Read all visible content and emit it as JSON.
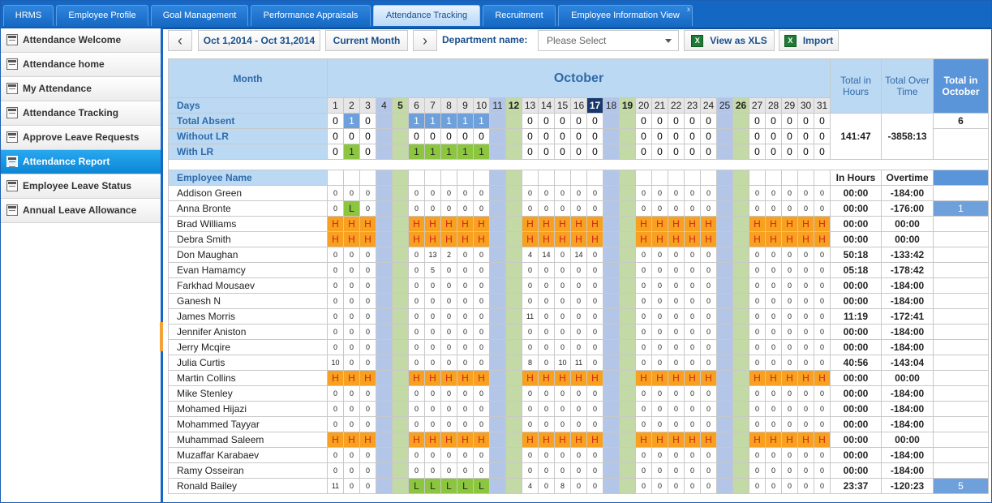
{
  "tabs": [
    {
      "label": "HRMS",
      "active": false
    },
    {
      "label": "Employee Profile",
      "active": false
    },
    {
      "label": "Goal Management",
      "active": false
    },
    {
      "label": "Performance Appraisals",
      "active": false
    },
    {
      "label": "Attendance Tracking",
      "active": true
    },
    {
      "label": "Recruitment",
      "active": false
    },
    {
      "label": "Employee Information View",
      "active": false
    }
  ],
  "tab_close_glyph": "x",
  "sidebar": {
    "items": [
      {
        "label": "Attendance Welcome",
        "active": false
      },
      {
        "label": "Attendance home",
        "active": false
      },
      {
        "label": "My Attendance",
        "active": false
      },
      {
        "label": "Attendance Tracking",
        "active": false
      },
      {
        "label": "Approve Leave Requests",
        "active": false
      },
      {
        "label": "Attendance Report",
        "active": true
      },
      {
        "label": "Employee Leave Status",
        "active": false
      },
      {
        "label": "Annual Leave Allowance",
        "active": false
      }
    ]
  },
  "toolbar": {
    "prev_glyph": "‹",
    "next_glyph": "›",
    "date_range": "Oct 1,2014 - Oct 31,2014",
    "current_month": "Current Month",
    "department_label": "Department name:",
    "department_placeholder": "Please Select",
    "view_xls": "View as XLS",
    "import": "Import",
    "xls_glyph": "X"
  },
  "report": {
    "month_label": "Month",
    "month_name": "October",
    "total_hours_header": "Total in Hours",
    "total_overtime_header": "Total Over Time",
    "total_month_header": "Total in October",
    "days_label": "Days",
    "days": [
      1,
      2,
      3,
      4,
      5,
      6,
      7,
      8,
      9,
      10,
      11,
      12,
      13,
      14,
      15,
      16,
      17,
      18,
      19,
      20,
      21,
      22,
      23,
      24,
      25,
      26,
      27,
      28,
      29,
      30,
      31
    ],
    "sundays": [
      4,
      11,
      18,
      25
    ],
    "saturdays": [
      5,
      12,
      19,
      26
    ],
    "highlight_day": 17,
    "summary_rows": [
      {
        "label": "Total Absent",
        "cells": [
          "0",
          "1",
          "0",
          "",
          "",
          "1",
          "1",
          "1",
          "1",
          "1",
          "",
          "",
          "0",
          "0",
          "0",
          "0",
          "0",
          "",
          "",
          "0",
          "0",
          "0",
          "0",
          "0",
          "",
          "",
          "0",
          "0",
          "0",
          "0",
          "0"
        ],
        "hl": "blue"
      },
      {
        "label": "Without LR",
        "cells": [
          "0",
          "0",
          "0",
          "",
          "",
          "0",
          "0",
          "0",
          "0",
          "0",
          "",
          "",
          "0",
          "0",
          "0",
          "0",
          "0",
          "",
          "",
          "0",
          "0",
          "0",
          "0",
          "0",
          "",
          "",
          "0",
          "0",
          "0",
          "0",
          "0"
        ],
        "hl": ""
      },
      {
        "label": "With LR",
        "cells": [
          "0",
          "1",
          "0",
          "",
          "",
          "1",
          "1",
          "1",
          "1",
          "1",
          "",
          "",
          "0",
          "0",
          "0",
          "0",
          "0",
          "",
          "",
          "0",
          "0",
          "0",
          "0",
          "0",
          "",
          "",
          "0",
          "0",
          "0",
          "0",
          "0"
        ],
        "hl": "green"
      }
    ],
    "summary_total_hours": "141:47",
    "summary_total_overtime": "-3858:13",
    "summary_total_month": "6",
    "employee_label": "Employee Name",
    "in_hours_label": "In Hours",
    "overtime_label": "Overtime",
    "employees": [
      {
        "name": "Addison Green",
        "cells": [
          "0",
          "0",
          "0",
          "",
          "",
          "0",
          "0",
          "0",
          "0",
          "0",
          "",
          "",
          "0",
          "0",
          "0",
          "0",
          "0",
          "",
          "",
          "0",
          "0",
          "0",
          "0",
          "0",
          "",
          "",
          "0",
          "0",
          "0",
          "0",
          "0"
        ],
        "hours": "00:00",
        "overtime": "-184:00",
        "month": ""
      },
      {
        "name": "Anna Bronte",
        "cells": [
          "0",
          "L",
          "0",
          "",
          "",
          "0",
          "0",
          "0",
          "0",
          "0",
          "",
          "",
          "0",
          "0",
          "0",
          "0",
          "0",
          "",
          "",
          "0",
          "0",
          "0",
          "0",
          "0",
          "",
          "",
          "0",
          "0",
          "0",
          "0",
          "0"
        ],
        "hours": "00:00",
        "overtime": "-176:00",
        "month": "1"
      },
      {
        "name": "Brad Williams",
        "cells": [
          "H",
          "H",
          "H",
          "",
          "",
          "H",
          "H",
          "H",
          "H",
          "H",
          "",
          "",
          "H",
          "H",
          "H",
          "H",
          "H",
          "",
          "",
          "H",
          "H",
          "H",
          "H",
          "H",
          "",
          "",
          "H",
          "H",
          "H",
          "H",
          "H"
        ],
        "hours": "00:00",
        "overtime": "00:00",
        "month": ""
      },
      {
        "name": "Debra Smith",
        "cells": [
          "H",
          "H",
          "H",
          "",
          "",
          "H",
          "H",
          "H",
          "H",
          "H",
          "",
          "",
          "H",
          "H",
          "H",
          "H",
          "H",
          "",
          "",
          "H",
          "H",
          "H",
          "H",
          "H",
          "",
          "",
          "H",
          "H",
          "H",
          "H",
          "H"
        ],
        "hours": "00:00",
        "overtime": "00:00",
        "month": ""
      },
      {
        "name": "Don Maughan",
        "cells": [
          "0",
          "0",
          "0",
          "",
          "",
          "0",
          "13",
          "2",
          "0",
          "0",
          "",
          "",
          "4",
          "14",
          "0",
          "14",
          "0",
          "",
          "",
          "0",
          "0",
          "0",
          "0",
          "0",
          "",
          "",
          "0",
          "0",
          "0",
          "0",
          "0"
        ],
        "hours": "50:18",
        "overtime": "-133:42",
        "month": ""
      },
      {
        "name": "Evan Hamamcy",
        "cells": [
          "0",
          "0",
          "0",
          "",
          "",
          "0",
          "5",
          "0",
          "0",
          "0",
          "",
          "",
          "0",
          "0",
          "0",
          "0",
          "0",
          "",
          "",
          "0",
          "0",
          "0",
          "0",
          "0",
          "",
          "",
          "0",
          "0",
          "0",
          "0",
          "0"
        ],
        "hours": "05:18",
        "overtime": "-178:42",
        "month": ""
      },
      {
        "name": "Farkhad Mousaev",
        "cells": [
          "0",
          "0",
          "0",
          "",
          "",
          "0",
          "0",
          "0",
          "0",
          "0",
          "",
          "",
          "0",
          "0",
          "0",
          "0",
          "0",
          "",
          "",
          "0",
          "0",
          "0",
          "0",
          "0",
          "",
          "",
          "0",
          "0",
          "0",
          "0",
          "0"
        ],
        "hours": "00:00",
        "overtime": "-184:00",
        "month": ""
      },
      {
        "name": "Ganesh N",
        "cells": [
          "0",
          "0",
          "0",
          "",
          "",
          "0",
          "0",
          "0",
          "0",
          "0",
          "",
          "",
          "0",
          "0",
          "0",
          "0",
          "0",
          "",
          "",
          "0",
          "0",
          "0",
          "0",
          "0",
          "",
          "",
          "0",
          "0",
          "0",
          "0",
          "0"
        ],
        "hours": "00:00",
        "overtime": "-184:00",
        "month": ""
      },
      {
        "name": "James Morris",
        "cells": [
          "0",
          "0",
          "0",
          "",
          "",
          "0",
          "0",
          "0",
          "0",
          "0",
          "",
          "",
          "11",
          "0",
          "0",
          "0",
          "0",
          "",
          "",
          "0",
          "0",
          "0",
          "0",
          "0",
          "",
          "",
          "0",
          "0",
          "0",
          "0",
          "0"
        ],
        "hours": "11:19",
        "overtime": "-172:41",
        "month": ""
      },
      {
        "name": "Jennifer Aniston",
        "cells": [
          "0",
          "0",
          "0",
          "",
          "",
          "0",
          "0",
          "0",
          "0",
          "0",
          "",
          "",
          "0",
          "0",
          "0",
          "0",
          "0",
          "",
          "",
          "0",
          "0",
          "0",
          "0",
          "0",
          "",
          "",
          "0",
          "0",
          "0",
          "0",
          "0"
        ],
        "hours": "00:00",
        "overtime": "-184:00",
        "month": ""
      },
      {
        "name": "Jerry Mcqire",
        "cells": [
          "0",
          "0",
          "0",
          "",
          "",
          "0",
          "0",
          "0",
          "0",
          "0",
          "",
          "",
          "0",
          "0",
          "0",
          "0",
          "0",
          "",
          "",
          "0",
          "0",
          "0",
          "0",
          "0",
          "",
          "",
          "0",
          "0",
          "0",
          "0",
          "0"
        ],
        "hours": "00:00",
        "overtime": "-184:00",
        "month": ""
      },
      {
        "name": "Julia Curtis",
        "cells": [
          "10",
          "0",
          "0",
          "",
          "",
          "0",
          "0",
          "0",
          "0",
          "0",
          "",
          "",
          "8",
          "0",
          "10",
          "11",
          "0",
          "",
          "",
          "0",
          "0",
          "0",
          "0",
          "0",
          "",
          "",
          "0",
          "0",
          "0",
          "0",
          "0"
        ],
        "hours": "40:56",
        "overtime": "-143:04",
        "month": ""
      },
      {
        "name": "Martin Collins",
        "cells": [
          "H",
          "H",
          "H",
          "",
          "",
          "H",
          "H",
          "H",
          "H",
          "H",
          "",
          "",
          "H",
          "H",
          "H",
          "H",
          "H",
          "",
          "",
          "H",
          "H",
          "H",
          "H",
          "H",
          "",
          "",
          "H",
          "H",
          "H",
          "H",
          "H"
        ],
        "hours": "00:00",
        "overtime": "00:00",
        "month": ""
      },
      {
        "name": "Mike Stenley",
        "cells": [
          "0",
          "0",
          "0",
          "",
          "",
          "0",
          "0",
          "0",
          "0",
          "0",
          "",
          "",
          "0",
          "0",
          "0",
          "0",
          "0",
          "",
          "",
          "0",
          "0",
          "0",
          "0",
          "0",
          "",
          "",
          "0",
          "0",
          "0",
          "0",
          "0"
        ],
        "hours": "00:00",
        "overtime": "-184:00",
        "month": ""
      },
      {
        "name": "Mohamed Hijazi",
        "cells": [
          "0",
          "0",
          "0",
          "",
          "",
          "0",
          "0",
          "0",
          "0",
          "0",
          "",
          "",
          "0",
          "0",
          "0",
          "0",
          "0",
          "",
          "",
          "0",
          "0",
          "0",
          "0",
          "0",
          "",
          "",
          "0",
          "0",
          "0",
          "0",
          "0"
        ],
        "hours": "00:00",
        "overtime": "-184:00",
        "month": ""
      },
      {
        "name": "Mohammed Tayyar",
        "cells": [
          "0",
          "0",
          "0",
          "",
          "",
          "0",
          "0",
          "0",
          "0",
          "0",
          "",
          "",
          "0",
          "0",
          "0",
          "0",
          "0",
          "",
          "",
          "0",
          "0",
          "0",
          "0",
          "0",
          "",
          "",
          "0",
          "0",
          "0",
          "0",
          "0"
        ],
        "hours": "00:00",
        "overtime": "-184:00",
        "month": ""
      },
      {
        "name": "Muhammad Saleem",
        "cells": [
          "H",
          "H",
          "H",
          "",
          "",
          "H",
          "H",
          "H",
          "H",
          "H",
          "",
          "",
          "H",
          "H",
          "H",
          "H",
          "H",
          "",
          "",
          "H",
          "H",
          "H",
          "H",
          "H",
          "",
          "",
          "H",
          "H",
          "H",
          "H",
          "H"
        ],
        "hours": "00:00",
        "overtime": "00:00",
        "month": ""
      },
      {
        "name": "Muzaffar Karabaev",
        "cells": [
          "0",
          "0",
          "0",
          "",
          "",
          "0",
          "0",
          "0",
          "0",
          "0",
          "",
          "",
          "0",
          "0",
          "0",
          "0",
          "0",
          "",
          "",
          "0",
          "0",
          "0",
          "0",
          "0",
          "",
          "",
          "0",
          "0",
          "0",
          "0",
          "0"
        ],
        "hours": "00:00",
        "overtime": "-184:00",
        "month": ""
      },
      {
        "name": "Ramy Osseiran",
        "cells": [
          "0",
          "0",
          "0",
          "",
          "",
          "0",
          "0",
          "0",
          "0",
          "0",
          "",
          "",
          "0",
          "0",
          "0",
          "0",
          "0",
          "",
          "",
          "0",
          "0",
          "0",
          "0",
          "0",
          "",
          "",
          "0",
          "0",
          "0",
          "0",
          "0"
        ],
        "hours": "00:00",
        "overtime": "-184:00",
        "month": ""
      },
      {
        "name": "Ronald Bailey",
        "cells": [
          "11",
          "0",
          "0",
          "",
          "",
          "L",
          "L",
          "L",
          "L",
          "L",
          "",
          "",
          "4",
          "0",
          "8",
          "0",
          "0",
          "",
          "",
          "0",
          "0",
          "0",
          "0",
          "0",
          "",
          "",
          "0",
          "0",
          "0",
          "0",
          "0"
        ],
        "hours": "23:37",
        "overtime": "-120:23",
        "month": "5"
      }
    ]
  },
  "colors": {
    "brand": "#1567c4",
    "header": "#bcd9f4",
    "holiday": "#f8a020",
    "leave": "#8cc63f",
    "sunday": "#b3c6e8",
    "saturday": "#c3d9a6",
    "total_blue": "#6ea1dc"
  }
}
